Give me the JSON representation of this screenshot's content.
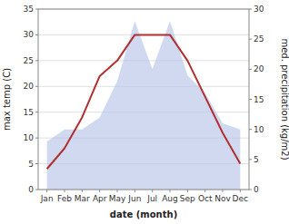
{
  "chart_data": {
    "type": "line",
    "categories": [
      "Jan",
      "Feb",
      "Mar",
      "Apr",
      "May",
      "Jun",
      "Jul",
      "Aug",
      "Sep",
      "Oct",
      "Nov",
      "Dec"
    ],
    "x_label": "date (month)",
    "y_label": "max temp (C)",
    "y2_label": "med. precipitation (kg/m2)",
    "series": [
      {
        "type": "line",
        "color": "#b03030",
        "values": [
          4,
          8,
          14,
          22,
          25,
          30,
          30,
          30,
          25,
          18,
          11,
          5
        ]
      },
      {
        "type": "area",
        "color": "#b8c4e8",
        "axis": "y2",
        "values": [
          8,
          10,
          10,
          12,
          18,
          28,
          20,
          28,
          19,
          16,
          11,
          10
        ]
      }
    ],
    "ylim": [
      0,
      35
    ],
    "yticks": [
      0,
      5,
      10,
      15,
      20,
      25,
      30,
      35
    ],
    "y2lim": [
      0,
      30
    ],
    "y2ticks": [
      0,
      5,
      10,
      15,
      20,
      25,
      30
    ],
    "grid": true
  }
}
